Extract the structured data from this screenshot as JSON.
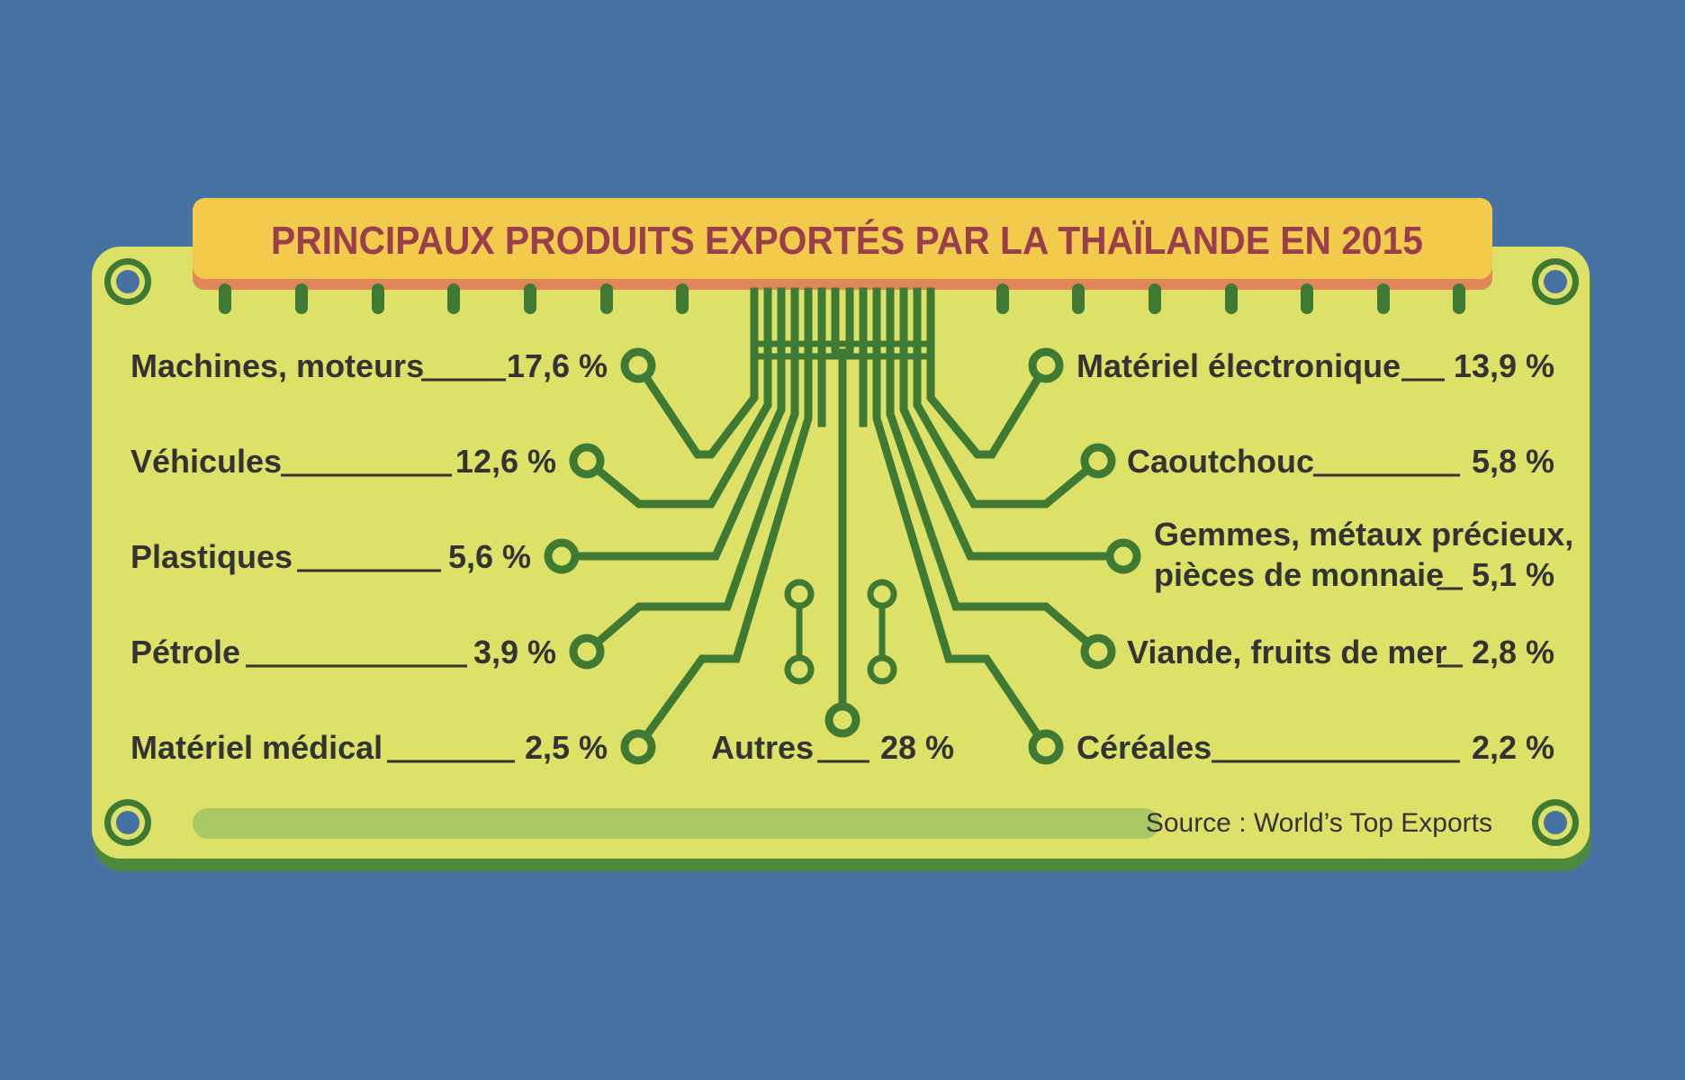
{
  "chart_data": {
    "type": "table",
    "title": "PRINCIPAUX PRODUITS EXPORTÉS PAR LA THAÏLANDE EN 2015",
    "source": "Source : World’s Top Exports",
    "categories": [
      "Machines, moteurs",
      "Véhicules",
      "Plastiques",
      "Pétrole",
      "Matériel médical",
      "Matériel électronique",
      "Caoutchouc",
      "Gemmes, métaux précieux, pièces de monnaie",
      "Viande, fruits de mer",
      "Céréales",
      "Autres"
    ],
    "values": [
      17.6,
      12.6,
      5.6,
      3.9,
      2.5,
      13.9,
      5.8,
      5.1,
      2.8,
      2.2,
      28
    ],
    "unit": "%",
    "items": [
      {
        "label": "Machines, moteurs",
        "value_label": "17,6 %",
        "value": 17.6
      },
      {
        "label": "Véhicules",
        "value_label": "12,6 %",
        "value": 12.6
      },
      {
        "label": "Plastiques",
        "value_label": "5,6 %",
        "value": 5.6
      },
      {
        "label": "Pétrole",
        "value_label": "3,9 %",
        "value": 3.9
      },
      {
        "label": "Matériel médical",
        "value_label": "2,5 %",
        "value": 2.5
      },
      {
        "label": "Matériel électronique",
        "value_label": "13,9 %",
        "value": 13.9
      },
      {
        "label": "Caoutchouc",
        "value_label": "5,8 %",
        "value": 5.8
      },
      {
        "label": "Gemmes, métaux précieux, pièces de monnaie",
        "label_lines": [
          "Gemmes, métaux précieux,",
          "pièces de monnaie"
        ],
        "value_label": "5,1 %",
        "value": 5.1
      },
      {
        "label": "Viande, fruits de mer",
        "value_label": "2,8 %",
        "value": 2.8
      },
      {
        "label": "Céréales",
        "value_label": "2,2 %",
        "value": 2.2
      },
      {
        "label": "Autres",
        "value_label": "28 %",
        "value": 28
      }
    ]
  },
  "colors": {
    "background": "#4771a1",
    "board": "#dde168",
    "board_shadow": "#4e8a3b",
    "trace": "#3f7a35",
    "title_banner": "#f3cb4c",
    "title_banner_edge": "#e0865a",
    "title_text": "#9a3d4c",
    "label_text": "#333333",
    "bar": "#a9c762"
  }
}
